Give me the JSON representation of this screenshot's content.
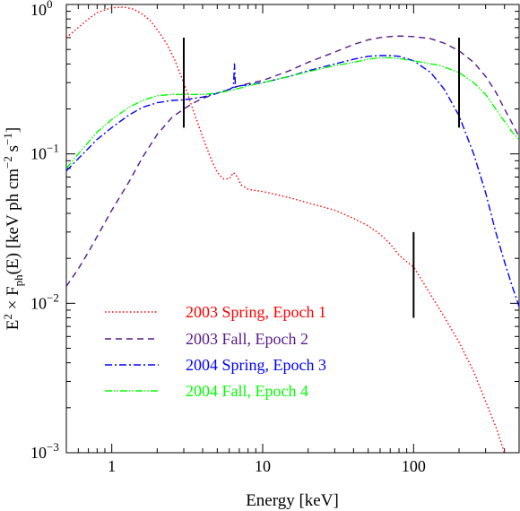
{
  "chart_data": {
    "type": "line",
    "xlabel": "Energy [keV]",
    "ylabel": "E² × F_ph(E) [keV ph cm⁻² s⁻¹]",
    "ylabel_parts": {
      "e": "E",
      "e_sup": "2",
      "times": " × F",
      "f_sub": "ph",
      "mid": "(E) [keV ph cm",
      "cm_sup": "−2",
      "s": " s",
      "s_sup": "−1",
      "close": "]"
    },
    "x_scale": "log",
    "y_scale": "log",
    "xlim": [
      0.5,
      500
    ],
    "ylim": [
      0.001,
      1
    ],
    "x_ticks": [
      {
        "value": 1,
        "label": "1"
      },
      {
        "value": 10,
        "label": "10"
      },
      {
        "value": 100,
        "label": "100"
      }
    ],
    "y_ticks": [
      {
        "value": 1,
        "base": "10",
        "exp": "0"
      },
      {
        "value": 0.1,
        "base": "10",
        "exp": "−1"
      },
      {
        "value": 0.01,
        "base": "10",
        "exp": "−2"
      },
      {
        "value": 0.001,
        "base": "10",
        "exp": "−3"
      }
    ],
    "grid": false,
    "legend_position": "bottom-left",
    "series": [
      {
        "name": "2003 Spring, Epoch 1",
        "color": "#ff0000",
        "dash": "1.5,2.5",
        "points": [
          [
            0.5,
            0.6
          ],
          [
            0.6,
            0.7
          ],
          [
            0.7,
            0.8
          ],
          [
            0.8,
            0.88
          ],
          [
            0.9,
            0.92
          ],
          [
            1.0,
            0.95
          ],
          [
            1.2,
            0.96
          ],
          [
            1.4,
            0.93
          ],
          [
            1.6,
            0.86
          ],
          [
            1.8,
            0.78
          ],
          [
            2.0,
            0.68
          ],
          [
            2.3,
            0.55
          ],
          [
            2.6,
            0.43
          ],
          [
            3.0,
            0.3
          ],
          [
            3.5,
            0.19
          ],
          [
            4.0,
            0.13
          ],
          [
            4.5,
            0.095
          ],
          [
            5.0,
            0.075
          ],
          [
            5.5,
            0.068
          ],
          [
            6.0,
            0.068
          ],
          [
            6.4,
            0.075
          ],
          [
            6.8,
            0.07
          ],
          [
            7.2,
            0.062
          ],
          [
            8.0,
            0.058
          ],
          [
            10,
            0.056
          ],
          [
            15,
            0.051
          ],
          [
            20,
            0.047
          ],
          [
            30,
            0.042
          ],
          [
            40,
            0.037
          ],
          [
            50,
            0.033
          ],
          [
            60,
            0.029
          ],
          [
            70,
            0.025
          ],
          [
            80,
            0.021
          ],
          [
            90,
            0.019
          ],
          [
            100,
            0.0175
          ],
          [
            120,
            0.013
          ],
          [
            150,
            0.009
          ],
          [
            200,
            0.0055
          ],
          [
            250,
            0.0035
          ],
          [
            300,
            0.0022
          ],
          [
            350,
            0.0015
          ],
          [
            400,
            0.001
          ]
        ]
      },
      {
        "name": "2003 Fall, Epoch 2",
        "color": "#551a8b",
        "dash": "7,5",
        "points": [
          [
            0.5,
            0.013
          ],
          [
            0.6,
            0.017
          ],
          [
            0.7,
            0.022
          ],
          [
            0.8,
            0.028
          ],
          [
            1.0,
            0.042
          ],
          [
            1.3,
            0.065
          ],
          [
            1.6,
            0.095
          ],
          [
            2.0,
            0.135
          ],
          [
            2.5,
            0.175
          ],
          [
            3.0,
            0.2
          ],
          [
            3.5,
            0.22
          ],
          [
            4.0,
            0.235
          ],
          [
            5.0,
            0.255
          ],
          [
            6.0,
            0.27
          ],
          [
            6.5,
            0.28
          ],
          [
            7.0,
            0.285
          ],
          [
            8.0,
            0.295
          ],
          [
            10,
            0.31
          ],
          [
            15,
            0.36
          ],
          [
            20,
            0.41
          ],
          [
            30,
            0.48
          ],
          [
            40,
            0.54
          ],
          [
            50,
            0.58
          ],
          [
            60,
            0.6
          ],
          [
            70,
            0.61
          ],
          [
            80,
            0.615
          ],
          [
            100,
            0.61
          ],
          [
            130,
            0.59
          ],
          [
            160,
            0.55
          ],
          [
            200,
            0.49
          ],
          [
            250,
            0.41
          ],
          [
            300,
            0.33
          ],
          [
            350,
            0.26
          ],
          [
            400,
            0.2
          ],
          [
            450,
            0.16
          ],
          [
            500,
            0.13
          ]
        ]
      },
      {
        "name": "2004 Spring, Epoch 3",
        "color": "#0000ff",
        "dash": "8,3,2,3",
        "points": [
          [
            0.5,
            0.077
          ],
          [
            0.6,
            0.093
          ],
          [
            0.8,
            0.125
          ],
          [
            1.0,
            0.15
          ],
          [
            1.3,
            0.182
          ],
          [
            1.6,
            0.205
          ],
          [
            2.0,
            0.22
          ],
          [
            2.5,
            0.228
          ],
          [
            3.0,
            0.23
          ],
          [
            4.0,
            0.24
          ],
          [
            5.0,
            0.255
          ],
          [
            6.0,
            0.27
          ],
          [
            6.4,
            0.28
          ],
          [
            6.5,
            0.4
          ],
          [
            6.6,
            0.28
          ],
          [
            7.0,
            0.285
          ],
          [
            8.0,
            0.29
          ],
          [
            10,
            0.3
          ],
          [
            15,
            0.33
          ],
          [
            20,
            0.36
          ],
          [
            30,
            0.4
          ],
          [
            40,
            0.43
          ],
          [
            50,
            0.45
          ],
          [
            60,
            0.455
          ],
          [
            70,
            0.455
          ],
          [
            80,
            0.45
          ],
          [
            100,
            0.42
          ],
          [
            130,
            0.35
          ],
          [
            160,
            0.27
          ],
          [
            200,
            0.18
          ],
          [
            250,
            0.1
          ],
          [
            300,
            0.055
          ],
          [
            350,
            0.03
          ],
          [
            400,
            0.019
          ],
          [
            450,
            0.013
          ],
          [
            500,
            0.0095
          ]
        ]
      },
      {
        "name": "2004 Fall, Epoch 4",
        "color": "#00ff00",
        "dash": "8,2,1.5,2,1.5,2",
        "points": [
          [
            0.5,
            0.08
          ],
          [
            0.6,
            0.1
          ],
          [
            0.8,
            0.14
          ],
          [
            1.0,
            0.17
          ],
          [
            1.3,
            0.205
          ],
          [
            1.6,
            0.228
          ],
          [
            2.0,
            0.245
          ],
          [
            2.5,
            0.25
          ],
          [
            3.0,
            0.25
          ],
          [
            4.0,
            0.25
          ],
          [
            5.0,
            0.255
          ],
          [
            6.0,
            0.265
          ],
          [
            7.0,
            0.275
          ],
          [
            8.0,
            0.285
          ],
          [
            10,
            0.3
          ],
          [
            15,
            0.33
          ],
          [
            20,
            0.355
          ],
          [
            30,
            0.39
          ],
          [
            40,
            0.41
          ],
          [
            50,
            0.43
          ],
          [
            60,
            0.44
          ],
          [
            70,
            0.44
          ],
          [
            80,
            0.435
          ],
          [
            100,
            0.42
          ],
          [
            150,
            0.39
          ],
          [
            200,
            0.35
          ],
          [
            250,
            0.3
          ],
          [
            300,
            0.25
          ],
          [
            350,
            0.2
          ],
          [
            400,
            0.165
          ],
          [
            450,
            0.14
          ],
          [
            500,
            0.125
          ]
        ]
      }
    ],
    "vertical_markers": [
      {
        "x": 3,
        "y_low": 0.15,
        "y_high": 0.6
      },
      {
        "x": 200,
        "y_low": 0.15,
        "y_high": 0.6
      },
      {
        "x": 100,
        "y_low": 0.008,
        "y_high": 0.03
      }
    ]
  }
}
